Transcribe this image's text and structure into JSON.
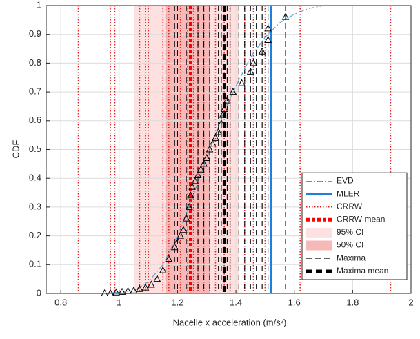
{
  "chart_data": {
    "type": "line",
    "xlabel": "Nacelle x acceleration (m/s²)",
    "ylabel": "CDF",
    "xlim": [
      0.75,
      2
    ],
    "ylim": [
      0,
      1
    ],
    "xticks": [
      0.8,
      1,
      1.2,
      1.4,
      1.6,
      1.8,
      2
    ],
    "yticks": [
      0,
      0.1,
      0.2,
      0.3,
      0.4,
      0.5,
      0.6,
      0.7,
      0.8,
      0.9,
      1
    ],
    "grid": true,
    "legend_loc": "lower right",
    "series": [
      {
        "name": "EVD",
        "kind": "curve",
        "color": "#4a9fd8",
        "x": [
          0.75,
          0.95,
          1.05,
          1.1,
          1.15,
          1.2,
          1.25,
          1.3,
          1.35,
          1.4,
          1.45,
          1.5,
          1.55,
          1.6,
          1.65,
          1.7,
          1.8,
          2
        ],
        "values": [
          0,
          0,
          0.01,
          0.04,
          0.1,
          0.2,
          0.33,
          0.47,
          0.61,
          0.72,
          0.82,
          0.89,
          0.94,
          0.97,
          0.99,
          1,
          1,
          1
        ]
      },
      {
        "name": "MLER",
        "kind": "vline",
        "color": "#1e7fe0",
        "x": [
          1.52
        ]
      },
      {
        "name": "CRRW",
        "kind": "vline-dot",
        "color": "#e02020",
        "x": [
          0.86,
          0.97,
          0.985,
          1.07,
          1.09,
          1.1,
          1.15,
          1.17,
          1.21,
          1.235,
          1.255,
          1.27,
          1.29,
          1.31,
          1.33,
          1.36,
          1.38,
          1.43,
          1.46,
          1.5,
          1.62,
          1.93
        ]
      },
      {
        "name": "CRRW mean",
        "kind": "vline-mean",
        "color": "#ff0000",
        "x": [
          1.245
        ]
      },
      {
        "name": "95% CI",
        "kind": "band",
        "color": "#fde0e0",
        "x": [
          1.05,
          1.41
        ]
      },
      {
        "name": "50% CI",
        "kind": "band",
        "color": "#f7b8b8",
        "x": [
          1.16,
          1.31
        ]
      },
      {
        "name": "Maxima",
        "kind": "vline-dash",
        "color": "#000000",
        "x": [
          1.16,
          1.19,
          1.2,
          1.23,
          1.27,
          1.29,
          1.31,
          1.34,
          1.35,
          1.37,
          1.38,
          1.41,
          1.43,
          1.45,
          1.47,
          1.49,
          1.51,
          1.57
        ]
      },
      {
        "name": "Maxima mean",
        "kind": "vline-maxmean",
        "color": "#000000",
        "x": [
          1.36
        ]
      }
    ],
    "points": {
      "color": "#000000",
      "x": [
        0.95,
        0.97,
        0.99,
        1.01,
        1.03,
        1.05,
        1.07,
        1.09,
        1.11,
        1.13,
        1.15,
        1.17,
        1.19,
        1.2,
        1.21,
        1.22,
        1.23,
        1.24,
        1.245,
        1.25,
        1.26,
        1.27,
        1.28,
        1.29,
        1.3,
        1.31,
        1.32,
        1.33,
        1.34,
        1.35,
        1.355,
        1.36,
        1.37,
        1.39,
        1.42,
        1.45,
        1.46,
        1.49,
        1.51,
        1.51,
        1.57
      ],
      "y": [
        0,
        0,
        0.003,
        0.005,
        0.008,
        0.01,
        0.015,
        0.02,
        0.03,
        0.05,
        0.08,
        0.12,
        0.16,
        0.18,
        0.2,
        0.22,
        0.26,
        0.3,
        0.34,
        0.37,
        0.39,
        0.41,
        0.43,
        0.45,
        0.47,
        0.5,
        0.52,
        0.54,
        0.56,
        0.59,
        0.62,
        0.64,
        0.67,
        0.7,
        0.73,
        0.77,
        0.8,
        0.84,
        0.88,
        0.92,
        0.96
      ]
    }
  }
}
